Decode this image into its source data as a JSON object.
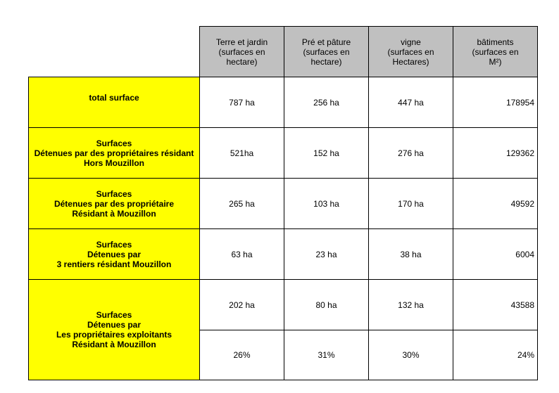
{
  "colors": {
    "header_bg": "#c0c0c0",
    "label_bg": "#ffff00",
    "cell_bg": "#ffffff",
    "border": "#000000"
  },
  "header": [
    "Terre  et jardin\n(surfaces en\nhectare)",
    "Pré et pâture\n(surfaces en\nhectare)",
    "vigne\n(surfaces en\nHectares)",
    "bâtiments\n(surfaces en\nM²)"
  ],
  "rows": [
    {
      "label": "total surface",
      "values": [
        "787 ha",
        "256 ha",
        "447 ha",
        "178954"
      ]
    },
    {
      "label": "Surfaces\nDétenues par des propriétaires résidant\nHors Mouzillon",
      "values": [
        "521ha",
        "152 ha",
        "276 ha",
        "129362"
      ]
    },
    {
      "label": "Surfaces\nDétenues par des propriétaire\nRésidant à Mouzillon",
      "values": [
        "265 ha",
        "103 ha",
        "170 ha",
        "49592"
      ]
    },
    {
      "label": "Surfaces\nDétenues par\n3 rentiers résidant Mouzillon",
      "values": [
        "63 ha",
        "23 ha",
        "38 ha",
        "6004"
      ]
    },
    {
      "label": "Surfaces\nDétenues par\nLes propriétaires exploitants\nRésidant à Mouzillon",
      "values": [
        "202 ha",
        "80 ha",
        "132 ha",
        "43588"
      ],
      "percent_values": [
        "26%",
        "31%",
        "30%",
        "24%"
      ]
    }
  ]
}
